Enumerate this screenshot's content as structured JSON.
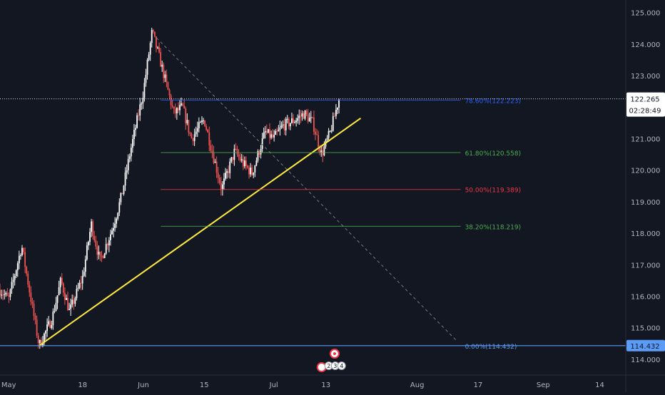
{
  "chart_data": {
    "type": "candlestick",
    "y_axis": {
      "range": [
        113.5,
        125.4
      ],
      "ticks": [
        "114.000",
        "115.000",
        "116.000",
        "117.000",
        "118.000",
        "119.000",
        "120.000",
        "121.000",
        "122.000",
        "123.000",
        "124.000",
        "125.000"
      ],
      "tick_values": [
        114,
        115,
        116,
        117,
        118,
        119,
        120,
        121,
        122,
        123,
        124,
        125
      ]
    },
    "x_axis": {
      "range": [
        "2020-04-29",
        "2020-09-20"
      ],
      "ticks": [
        {
          "label": "May",
          "date": "2020-05-01"
        },
        {
          "label": "18",
          "date": "2020-05-18"
        },
        {
          "label": "Jun",
          "date": "2020-06-01"
        },
        {
          "label": "15",
          "date": "2020-06-15"
        },
        {
          "label": "Jul",
          "date": "2020-07-01"
        },
        {
          "label": "13",
          "date": "2020-07-13"
        },
        {
          "label": "Aug",
          "date": "2020-08-03"
        },
        {
          "label": "17",
          "date": "2020-08-17"
        },
        {
          "label": "Sep",
          "date": "2020-09-01"
        },
        {
          "label": "14",
          "date": "2020-09-14"
        }
      ]
    },
    "price_path": [
      {
        "date": "2020-04-29",
        "value": 116.2
      },
      {
        "date": "2020-05-01",
        "value": 115.9
      },
      {
        "date": "2020-05-04",
        "value": 117.6
      },
      {
        "date": "2020-05-06",
        "value": 116.0
      },
      {
        "date": "2020-05-08",
        "value": 114.43
      },
      {
        "date": "2020-05-11",
        "value": 115.3
      },
      {
        "date": "2020-05-13",
        "value": 116.5
      },
      {
        "date": "2020-05-15",
        "value": 115.5
      },
      {
        "date": "2020-05-18",
        "value": 116.6
      },
      {
        "date": "2020-05-20",
        "value": 118.3
      },
      {
        "date": "2020-05-22",
        "value": 117.1
      },
      {
        "date": "2020-05-25",
        "value": 118.2
      },
      {
        "date": "2020-05-27",
        "value": 119.2
      },
      {
        "date": "2020-05-29",
        "value": 120.6
      },
      {
        "date": "2020-06-01",
        "value": 122.5
      },
      {
        "date": "2020-06-03",
        "value": 124.4
      },
      {
        "date": "2020-06-05",
        "value": 123.4
      },
      {
        "date": "2020-06-08",
        "value": 121.8
      },
      {
        "date": "2020-06-10",
        "value": 122.0
      },
      {
        "date": "2020-06-12",
        "value": 121.0
      },
      {
        "date": "2020-06-15",
        "value": 121.6
      },
      {
        "date": "2020-06-17",
        "value": 120.5
      },
      {
        "date": "2020-06-19",
        "value": 119.4
      },
      {
        "date": "2020-06-22",
        "value": 120.6
      },
      {
        "date": "2020-06-24",
        "value": 120.2
      },
      {
        "date": "2020-06-26",
        "value": 119.9
      },
      {
        "date": "2020-06-29",
        "value": 121.2
      },
      {
        "date": "2020-07-01",
        "value": 121.0
      },
      {
        "date": "2020-07-03",
        "value": 121.4
      },
      {
        "date": "2020-07-06",
        "value": 121.6
      },
      {
        "date": "2020-07-08",
        "value": 121.8
      },
      {
        "date": "2020-07-10",
        "value": 121.5
      },
      {
        "date": "2020-07-12",
        "value": 120.5
      },
      {
        "date": "2020-07-14",
        "value": 121.2
      },
      {
        "date": "2020-07-16",
        "value": 122.265
      }
    ],
    "lines": {
      "trendline": {
        "start": {
          "date": "2020-05-08",
          "value": 114.43
        },
        "end": {
          "date": "2020-07-21",
          "value": 121.65
        },
        "color": "#ffeb3b"
      },
      "fib_diagonal": {
        "start": {
          "date": "2020-06-04",
          "value": 124.2
        },
        "end": {
          "date": "2020-08-12",
          "value": 114.6
        },
        "color": "#787b86"
      }
    },
    "fib_levels": [
      {
        "label": "0.00%(114.432)",
        "value": 114.432,
        "color": "#5b9cf6"
      },
      {
        "label": "38.20%(118.219)",
        "value": 118.219,
        "color": "#4caf50"
      },
      {
        "label": "50.00%(119.389)",
        "value": 119.389,
        "color": "#f23645"
      },
      {
        "label": "61.80%(120.558)",
        "value": 120.558,
        "color": "#4caf50"
      },
      {
        "label": "78.60%(122.223)",
        "value": 122.223,
        "color": "#2962ff"
      }
    ],
    "current_price": {
      "value": "122.265",
      "countdown": "02:28:49"
    },
    "level_badge": {
      "value": "114.432"
    },
    "event_markers": [
      "2",
      "3",
      "4"
    ],
    "colors": {
      "up": "#ffffff",
      "down": "#ef5350",
      "background": "#131722",
      "axis_text": "#b2b5be"
    }
  }
}
